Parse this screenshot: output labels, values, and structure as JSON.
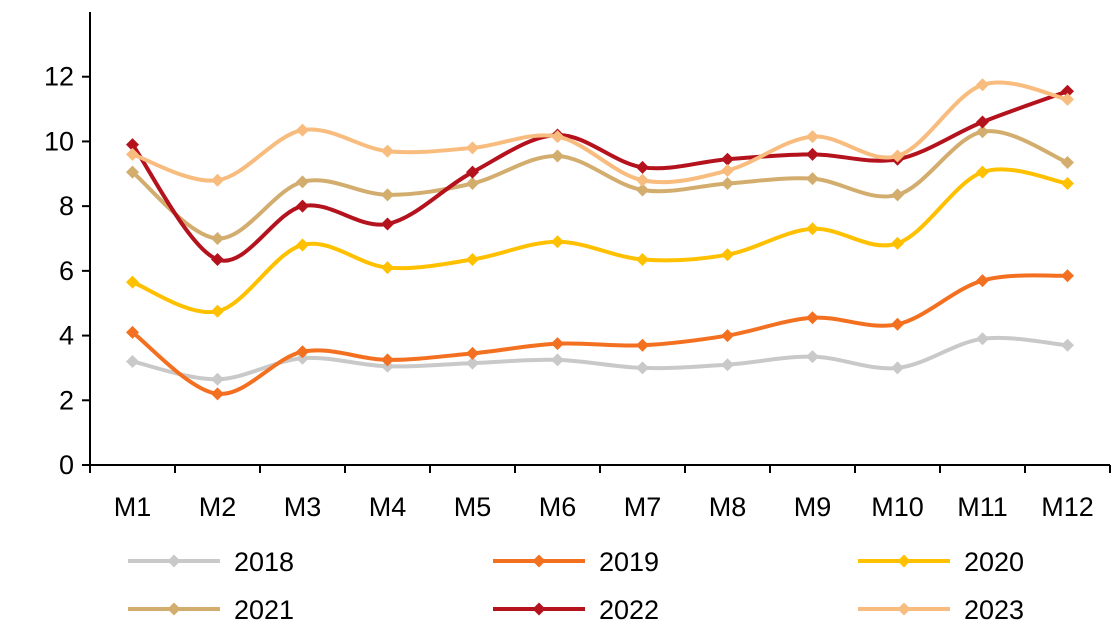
{
  "chart_data": {
    "type": "line",
    "smooth": true,
    "categories": [
      "M1",
      "M2",
      "M3",
      "M4",
      "M5",
      "M6",
      "M7",
      "M8",
      "M9",
      "M10",
      "M11",
      "M12"
    ],
    "ylim": [
      0,
      14
    ],
    "yticks": [
      0,
      2,
      4,
      6,
      8,
      10,
      12
    ],
    "title": "",
    "xlabel": "",
    "ylabel": "",
    "grid": false,
    "legend": "bottom",
    "series": [
      {
        "name": "2018",
        "color": "#c9c9c9",
        "values": [
          3.2,
          2.65,
          3.3,
          3.05,
          3.15,
          3.25,
          3.0,
          3.1,
          3.35,
          3.0,
          3.9,
          3.7
        ]
      },
      {
        "name": "2019",
        "color": "#f37021",
        "values": [
          4.1,
          2.2,
          3.5,
          3.25,
          3.45,
          3.75,
          3.7,
          4.0,
          4.55,
          4.35,
          5.7,
          5.85
        ]
      },
      {
        "name": "2020",
        "color": "#ffc000",
        "values": [
          5.65,
          4.75,
          6.8,
          6.1,
          6.35,
          6.9,
          6.35,
          6.5,
          7.3,
          6.85,
          9.05,
          8.7
        ]
      },
      {
        "name": "2021",
        "color": "#d2ad6e",
        "values": [
          9.05,
          7.0,
          8.75,
          8.35,
          8.7,
          9.55,
          8.5,
          8.7,
          8.85,
          8.35,
          10.3,
          9.35
        ]
      },
      {
        "name": "2022",
        "color": "#b4121d",
        "values": [
          9.9,
          6.35,
          8.0,
          7.45,
          9.05,
          10.2,
          9.2,
          9.45,
          9.6,
          9.45,
          10.6,
          11.55
        ]
      },
      {
        "name": "2023",
        "color": "#f7bc7e",
        "values": [
          9.6,
          8.8,
          10.35,
          9.7,
          9.8,
          10.15,
          8.8,
          9.1,
          10.15,
          9.55,
          11.75,
          11.3
        ]
      }
    ]
  }
}
